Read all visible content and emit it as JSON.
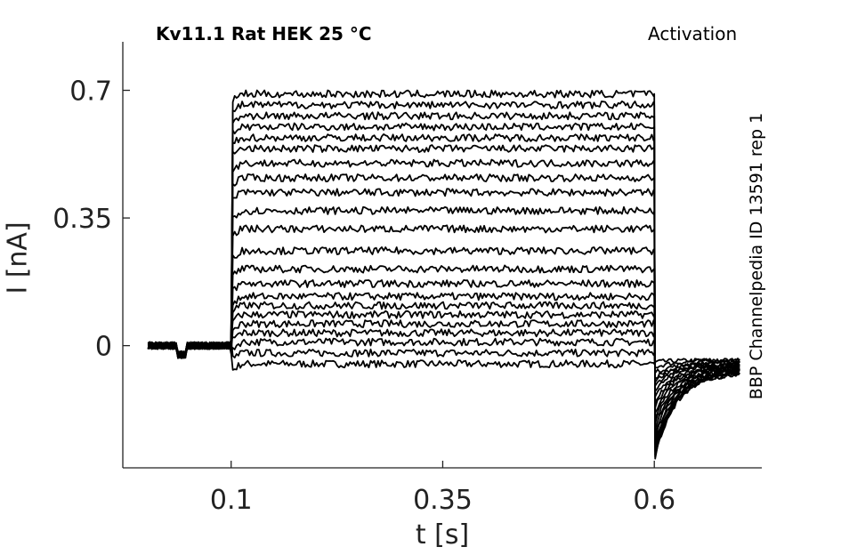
{
  "chart_data": {
    "type": "line",
    "title_left": "Kv11.1  Rat  HEK  25 °C",
    "title_right": "Activation",
    "side_label": "BBP Channelpedia ID 13591 rep 1",
    "xlabel": "t [s]",
    "ylabel": "I [nA]",
    "xlim": [
      -0.028,
      0.727
    ],
    "ylim": [
      -0.335,
      0.833
    ],
    "xticks": [
      0.1,
      0.35,
      0.6
    ],
    "xtick_labels": [
      "0.1",
      "0.35",
      "0.6"
    ],
    "yticks": [
      0,
      0.35,
      0.7
    ],
    "ytick_labels": [
      "0",
      "0.35",
      "0.7"
    ],
    "grid": false,
    "legend": "none",
    "line_color": "#000000",
    "pulse_start": 0.1,
    "pulse_end": 0.6,
    "series": [
      {
        "step_level": -0.05,
        "tail_peak": -0.045,
        "tail_end": -0.04
      },
      {
        "step_level": -0.02,
        "tail_peak": -0.06,
        "tail_end": -0.04
      },
      {
        "step_level": 0.01,
        "tail_peak": -0.075,
        "tail_end": -0.045
      },
      {
        "step_level": 0.035,
        "tail_peak": -0.09,
        "tail_end": -0.045
      },
      {
        "step_level": 0.06,
        "tail_peak": -0.1,
        "tail_end": -0.05
      },
      {
        "step_level": 0.085,
        "tail_peak": -0.11,
        "tail_end": -0.05
      },
      {
        "step_level": 0.11,
        "tail_peak": -0.125,
        "tail_end": -0.05
      },
      {
        "step_level": 0.135,
        "tail_peak": -0.14,
        "tail_end": -0.055
      },
      {
        "step_level": 0.17,
        "tail_peak": -0.155,
        "tail_end": -0.055
      },
      {
        "step_level": 0.21,
        "tail_peak": -0.17,
        "tail_end": -0.055
      },
      {
        "step_level": 0.26,
        "tail_peak": -0.185,
        "tail_end": -0.06
      },
      {
        "step_level": 0.32,
        "tail_peak": -0.2,
        "tail_end": -0.06
      },
      {
        "step_level": 0.37,
        "tail_peak": -0.215,
        "tail_end": -0.06
      },
      {
        "step_level": 0.42,
        "tail_peak": -0.23,
        "tail_end": -0.065
      },
      {
        "step_level": 0.46,
        "tail_peak": -0.245,
        "tail_end": -0.065
      },
      {
        "step_level": 0.5,
        "tail_peak": -0.26,
        "tail_end": -0.065
      },
      {
        "step_level": 0.54,
        "tail_peak": -0.27,
        "tail_end": -0.07
      },
      {
        "step_level": 0.57,
        "tail_peak": -0.28,
        "tail_end": -0.07
      },
      {
        "step_level": 0.6,
        "tail_peak": -0.29,
        "tail_end": -0.07
      },
      {
        "step_level": 0.63,
        "tail_peak": -0.3,
        "tail_end": -0.07
      },
      {
        "step_level": 0.66,
        "tail_peak": -0.305,
        "tail_end": -0.075
      },
      {
        "step_level": 0.69,
        "tail_peak": -0.31,
        "tail_end": -0.075
      }
    ]
  }
}
